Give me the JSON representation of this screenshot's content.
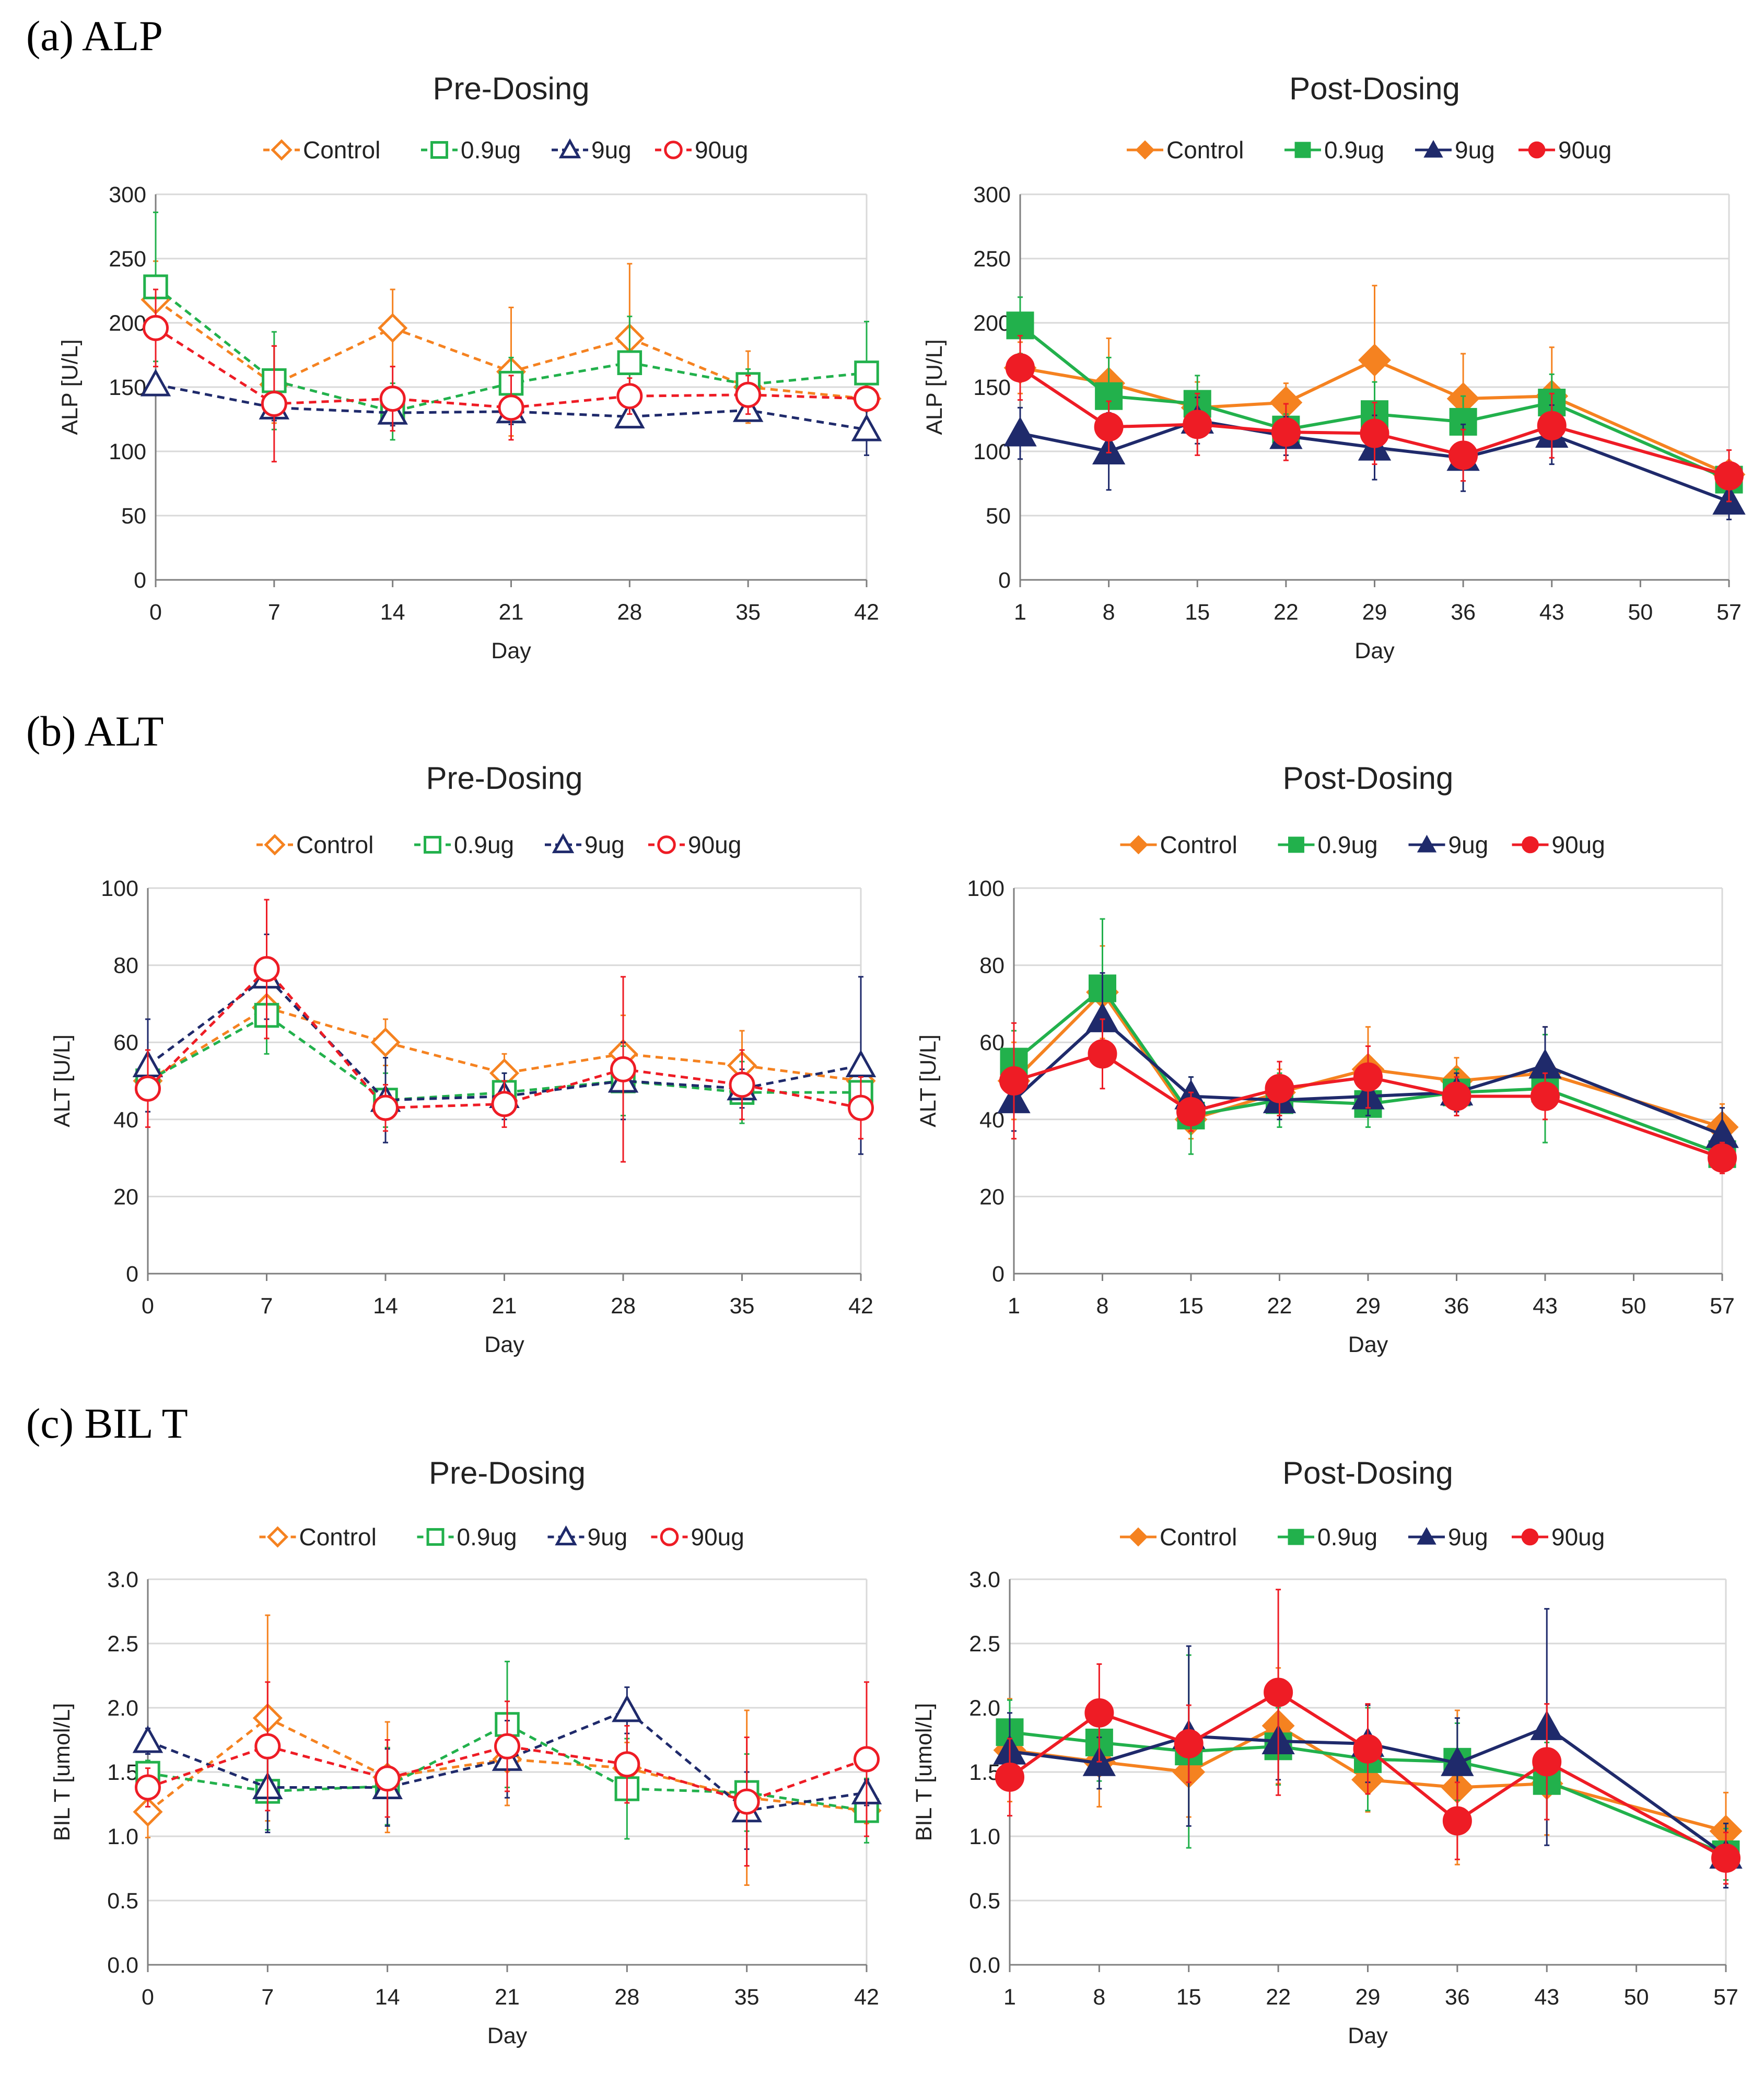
{
  "colors": {
    "Control": "#f58220",
    "0.9ug": "#22b14c",
    "9ug": "#1f2a6b",
    "90ug": "#ee1c25"
  },
  "chart_data": [
    {
      "panel_label": "(a) ALP",
      "type": "line",
      "style": "hollow-dashed",
      "title": "Pre-Dosing",
      "xlabel": "Day",
      "ylabel": "ALP [U/L]",
      "ylim": [
        0,
        300
      ],
      "yticks": [
        0,
        50,
        100,
        150,
        200,
        250,
        300
      ],
      "yticklabels": [
        "0",
        "50",
        "100",
        "150",
        "200",
        "250",
        "300"
      ],
      "xlim": [
        0,
        42
      ],
      "xticks": [
        0,
        7,
        14,
        21,
        28,
        35,
        42
      ],
      "grid": true,
      "legend": "top-center",
      "series": [
        {
          "name": "Control",
          "marker": "diamond",
          "x": [
            0,
            7,
            14,
            21,
            28,
            35,
            42
          ],
          "values": [
            218,
            152,
            196,
            162,
            188,
            150,
            141
          ],
          "err": [
            30,
            30,
            30,
            50,
            58,
            28,
            8
          ]
        },
        {
          "name": "0.9ug",
          "marker": "square",
          "x": [
            0,
            7,
            14,
            21,
            28,
            35,
            42
          ],
          "values": [
            228,
            155,
            131,
            153,
            169,
            152,
            161
          ],
          "err": [
            58,
            38,
            22,
            20,
            36,
            12,
            40
          ]
        },
        {
          "name": "9ug",
          "marker": "triangle",
          "x": [
            0,
            7,
            14,
            21,
            28,
            35,
            42
          ],
          "values": [
            152,
            134,
            130,
            131,
            127,
            132,
            117
          ],
          "err": [
            6,
            10,
            10,
            10,
            8,
            8,
            20
          ]
        },
        {
          "name": "90ug",
          "marker": "circle",
          "x": [
            0,
            7,
            14,
            21,
            28,
            35,
            42
          ],
          "values": [
            196,
            137,
            141,
            134,
            143,
            144,
            141
          ],
          "err": [
            30,
            45,
            25,
            25,
            14,
            15,
            8
          ]
        }
      ]
    },
    {
      "type": "line",
      "style": "filled-solid",
      "title": "Post-Dosing",
      "xlabel": "Day",
      "ylabel": "ALP [U/L]",
      "ylim": [
        0,
        300
      ],
      "yticks": [
        0,
        50,
        100,
        150,
        200,
        250,
        300
      ],
      "yticklabels": [
        "0",
        "50",
        "100",
        "150",
        "200",
        "250",
        "300"
      ],
      "xlim": [
        1,
        57
      ],
      "xticks": [
        1,
        8,
        15,
        22,
        29,
        36,
        43,
        50,
        57
      ],
      "grid": true,
      "legend": "top-center",
      "series": [
        {
          "name": "Control",
          "marker": "diamond",
          "x": [
            1,
            8,
            15,
            22,
            29,
            36,
            43,
            57
          ],
          "values": [
            165,
            153,
            134,
            138,
            171,
            141,
            143,
            82
          ],
          "err": [
            20,
            35,
            20,
            15,
            58,
            35,
            38,
            8
          ]
        },
        {
          "name": "0.9ug",
          "marker": "square",
          "x": [
            1,
            8,
            15,
            22,
            29,
            36,
            43,
            57
          ],
          "values": [
            198,
            143,
            137,
            117,
            129,
            123,
            138,
            78
          ],
          "err": [
            22,
            30,
            22,
            12,
            25,
            20,
            22,
            10
          ]
        },
        {
          "name": "9ug",
          "marker": "triangle",
          "x": [
            1,
            8,
            15,
            22,
            29,
            36,
            43,
            57
          ],
          "values": [
            114,
            100,
            124,
            112,
            103,
            95,
            113,
            61
          ],
          "err": [
            20,
            30,
            18,
            15,
            25,
            26,
            23,
            14
          ]
        },
        {
          "name": "90ug",
          "marker": "circle",
          "x": [
            1,
            8,
            15,
            22,
            29,
            36,
            43,
            57
          ],
          "values": [
            165,
            119,
            121,
            115,
            114,
            97,
            120,
            81
          ],
          "err": [
            25,
            20,
            24,
            22,
            24,
            20,
            25,
            20
          ]
        }
      ]
    },
    {
      "panel_label": "(b) ALT",
      "type": "line",
      "style": "hollow-dashed",
      "title": "Pre-Dosing",
      "xlabel": "Day",
      "ylabel": "ALT [U/L]",
      "ylim": [
        0,
        100
      ],
      "yticks": [
        0,
        20,
        40,
        60,
        80,
        100
      ],
      "yticklabels": [
        "0",
        "20",
        "40",
        "60",
        "80",
        "100"
      ],
      "xlim": [
        0,
        42
      ],
      "xticks": [
        0,
        7,
        14,
        21,
        28,
        35,
        42
      ],
      "grid": true,
      "legend": "top-center",
      "series": [
        {
          "name": "Control",
          "marker": "diamond",
          "x": [
            0,
            7,
            14,
            21,
            28,
            35,
            42
          ],
          "values": [
            50,
            69,
            60,
            52,
            57,
            54,
            50
          ],
          "err": [
            8,
            8,
            6,
            5,
            10,
            9,
            6
          ]
        },
        {
          "name": "0.9ug",
          "marker": "square",
          "x": [
            0,
            7,
            14,
            21,
            28,
            35,
            42
          ],
          "values": [
            50,
            67,
            45,
            47,
            50,
            47,
            47
          ],
          "err": [
            8,
            10,
            7,
            5,
            9,
            8,
            6
          ]
        },
        {
          "name": "9ug",
          "marker": "triangle",
          "x": [
            0,
            7,
            14,
            21,
            28,
            35,
            42
          ],
          "values": [
            54,
            77,
            45,
            46,
            50,
            48,
            54
          ],
          "err": [
            12,
            11,
            11,
            6,
            10,
            5,
            23
          ]
        },
        {
          "name": "90ug",
          "marker": "circle",
          "x": [
            0,
            7,
            14,
            21,
            28,
            35,
            42
          ],
          "values": [
            48,
            79,
            43,
            44,
            53,
            49,
            43
          ],
          "err": [
            10,
            18,
            6,
            6,
            24,
            9,
            8
          ]
        }
      ]
    },
    {
      "type": "line",
      "style": "filled-solid",
      "title": "Post-Dosing",
      "xlabel": "Day",
      "ylabel": "ALT [U/L]",
      "ylim": [
        0,
        100
      ],
      "yticks": [
        0,
        20,
        40,
        60,
        80,
        100
      ],
      "yticklabels": [
        "0",
        "20",
        "40",
        "60",
        "80",
        "100"
      ],
      "xlim": [
        1,
        57
      ],
      "xticks": [
        1,
        8,
        15,
        22,
        29,
        36,
        43,
        50,
        57
      ],
      "grid": true,
      "legend": "top-center",
      "series": [
        {
          "name": "Control",
          "marker": "diamond",
          "x": [
            1,
            8,
            15,
            22,
            29,
            36,
            43,
            57
          ],
          "values": [
            50,
            73,
            40,
            47,
            53,
            50,
            52,
            38
          ],
          "err": [
            10,
            12,
            5,
            6,
            11,
            6,
            12,
            6
          ]
        },
        {
          "name": "0.9ug",
          "marker": "square",
          "x": [
            1,
            8,
            15,
            22,
            29,
            36,
            43,
            57
          ],
          "values": [
            55,
            74,
            41,
            45,
            44,
            47,
            48,
            31
          ],
          "err": [
            8,
            18,
            10,
            7,
            6,
            6,
            14,
            4
          ]
        },
        {
          "name": "9ug",
          "marker": "triangle",
          "x": [
            1,
            8,
            15,
            22,
            29,
            36,
            43,
            57
          ],
          "values": [
            45,
            66,
            46,
            45,
            46,
            47,
            54,
            36
          ],
          "err": [
            8,
            12,
            5,
            5,
            5,
            5,
            10,
            7
          ]
        },
        {
          "name": "90ug",
          "marker": "circle",
          "x": [
            1,
            8,
            15,
            22,
            29,
            36,
            43,
            57
          ],
          "values": [
            50,
            57,
            42,
            48,
            51,
            46,
            46,
            30
          ],
          "err": [
            15,
            9,
            5,
            7,
            8,
            5,
            6,
            4
          ]
        }
      ]
    },
    {
      "panel_label": "(c) BIL T",
      "type": "line",
      "style": "hollow-dashed",
      "title": "Pre-Dosing",
      "xlabel": "Day",
      "ylabel": "BIL T [umol/L]",
      "ylim": [
        0,
        3
      ],
      "yticks": [
        0,
        0.5,
        1,
        1.5,
        2,
        2.5,
        3
      ],
      "yticklabels": [
        "0.0",
        "0.5",
        "1.0",
        "1.5",
        "2.0",
        "2.5",
        "3.0"
      ],
      "xlim": [
        0,
        42
      ],
      "xticks": [
        0,
        7,
        14,
        21,
        28,
        35,
        42
      ],
      "grid": true,
      "legend": "top-center",
      "series": [
        {
          "name": "Control",
          "marker": "diamond",
          "x": [
            0,
            7,
            14,
            21,
            28,
            35,
            42
          ],
          "values": [
            1.19,
            1.92,
            1.46,
            1.6,
            1.53,
            1.3,
            1.2
          ],
          "err": [
            0.2,
            0.8,
            0.43,
            0.36,
            0.2,
            0.68,
            0.1
          ]
        },
        {
          "name": "0.9ug",
          "marker": "square",
          "x": [
            0,
            7,
            14,
            21,
            28,
            35,
            42
          ],
          "values": [
            1.49,
            1.35,
            1.39,
            1.87,
            1.37,
            1.34,
            1.2
          ],
          "err": [
            0.1,
            0.3,
            0.3,
            0.49,
            0.39,
            0.3,
            0.25
          ]
        },
        {
          "name": "9ug",
          "marker": "triangle",
          "x": [
            0,
            7,
            14,
            21,
            28,
            35,
            42
          ],
          "values": [
            1.74,
            1.38,
            1.38,
            1.6,
            1.98,
            1.2,
            1.34
          ],
          "err": [
            0.1,
            0.35,
            0.3,
            0.3,
            0.18,
            0.3,
            0.1
          ]
        },
        {
          "name": "90ug",
          "marker": "circle",
          "x": [
            0,
            7,
            14,
            21,
            28,
            35,
            42
          ],
          "values": [
            1.38,
            1.7,
            1.45,
            1.7,
            1.56,
            1.27,
            1.6
          ],
          "err": [
            0.15,
            0.5,
            0.3,
            0.35,
            0.3,
            0.5,
            0.6
          ]
        }
      ]
    },
    {
      "type": "line",
      "style": "filled-solid",
      "title": "Post-Dosing",
      "xlabel": "Day",
      "ylabel": "BIL T [umol/L]",
      "ylim": [
        0,
        3
      ],
      "yticks": [
        0,
        0.5,
        1,
        1.5,
        2,
        2.5,
        3
      ],
      "yticklabels": [
        "0.0",
        "0.5",
        "1.0",
        "1.5",
        "2.0",
        "2.5",
        "3.0"
      ],
      "xlim": [
        1,
        57
      ],
      "xticks": [
        1,
        8,
        15,
        22,
        29,
        36,
        43,
        50,
        57
      ],
      "grid": true,
      "legend": "top-center",
      "series": [
        {
          "name": "Control",
          "marker": "diamond",
          "x": [
            1,
            8,
            15,
            22,
            29,
            36,
            43,
            57
          ],
          "values": [
            1.67,
            1.58,
            1.5,
            1.86,
            1.44,
            1.38,
            1.41,
            1.04
          ],
          "err": [
            0.4,
            0.35,
            0.35,
            0.45,
            0.25,
            0.6,
            0.4,
            0.3
          ]
        },
        {
          "name": "0.9ug",
          "marker": "square",
          "x": [
            1,
            8,
            15,
            22,
            29,
            36,
            43,
            57
          ],
          "values": [
            1.81,
            1.73,
            1.66,
            1.7,
            1.6,
            1.58,
            1.43,
            0.86
          ],
          "err": [
            0.25,
            0.3,
            0.75,
            0.3,
            0.4,
            0.3,
            0.3,
            0.2
          ]
        },
        {
          "name": "9ug",
          "marker": "triangle",
          "x": [
            1,
            8,
            15,
            22,
            29,
            36,
            43,
            57
          ],
          "values": [
            1.66,
            1.57,
            1.78,
            1.74,
            1.72,
            1.57,
            1.85,
            0.85
          ],
          "err": [
            0.3,
            0.2,
            0.7,
            0.3,
            0.3,
            0.35,
            0.92,
            0.25
          ]
        },
        {
          "name": "90ug",
          "marker": "circle",
          "x": [
            1,
            8,
            15,
            22,
            29,
            36,
            43,
            57
          ],
          "values": [
            1.46,
            1.96,
            1.72,
            2.12,
            1.68,
            1.12,
            1.58,
            0.83
          ],
          "err": [
            0.3,
            0.38,
            0.3,
            0.8,
            0.35,
            0.3,
            0.45,
            0.2
          ]
        }
      ]
    }
  ]
}
